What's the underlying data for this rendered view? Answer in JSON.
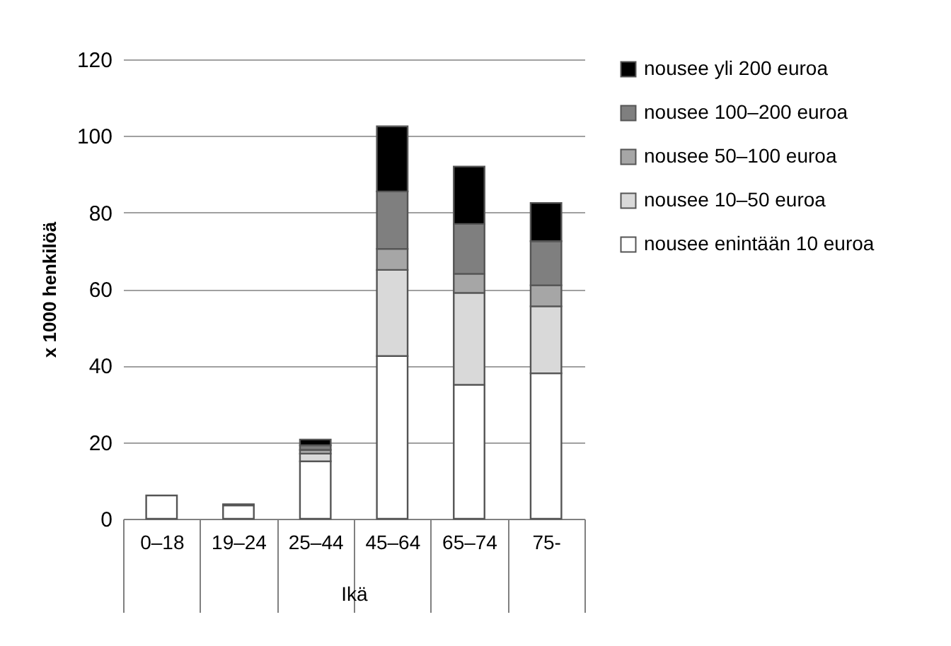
{
  "chart_data": {
    "type": "bar",
    "stacked": true,
    "xlabel": "Ikä",
    "ylabel": "x 1000 henkilöä",
    "categories": [
      "0–18",
      "19–24",
      "25–44",
      "45–64",
      "65–74",
      "75-"
    ],
    "ylim": [
      0,
      120
    ],
    "yticks": [
      0,
      20,
      40,
      60,
      80,
      100,
      120
    ],
    "grid": "y",
    "legend": "right",
    "series": [
      {
        "name": "nousee enintään 10 euroa",
        "color": "#ffffff",
        "values": [
          6.1,
          3.5,
          15,
          42.5,
          35,
          38
        ]
      },
      {
        "name": "nousee 10–50 euroa",
        "color": "#d9d9d9",
        "values": [
          null,
          null,
          2,
          22.5,
          24,
          17.5
        ]
      },
      {
        "name": "nousee 50–100 euroa",
        "color": "#a6a6a6",
        "values": [
          null,
          null,
          1,
          5.5,
          5,
          5.5
        ]
      },
      {
        "name": "nousee 100–200 euroa",
        "color": "#7f7f7f",
        "values": [
          null,
          null,
          1.2,
          15,
          13,
          11.5
        ]
      },
      {
        "name": "nousee yli 200 euroa",
        "color": "#000000",
        "values": [
          null,
          0.3,
          1.5,
          17,
          15,
          10
        ]
      }
    ]
  }
}
